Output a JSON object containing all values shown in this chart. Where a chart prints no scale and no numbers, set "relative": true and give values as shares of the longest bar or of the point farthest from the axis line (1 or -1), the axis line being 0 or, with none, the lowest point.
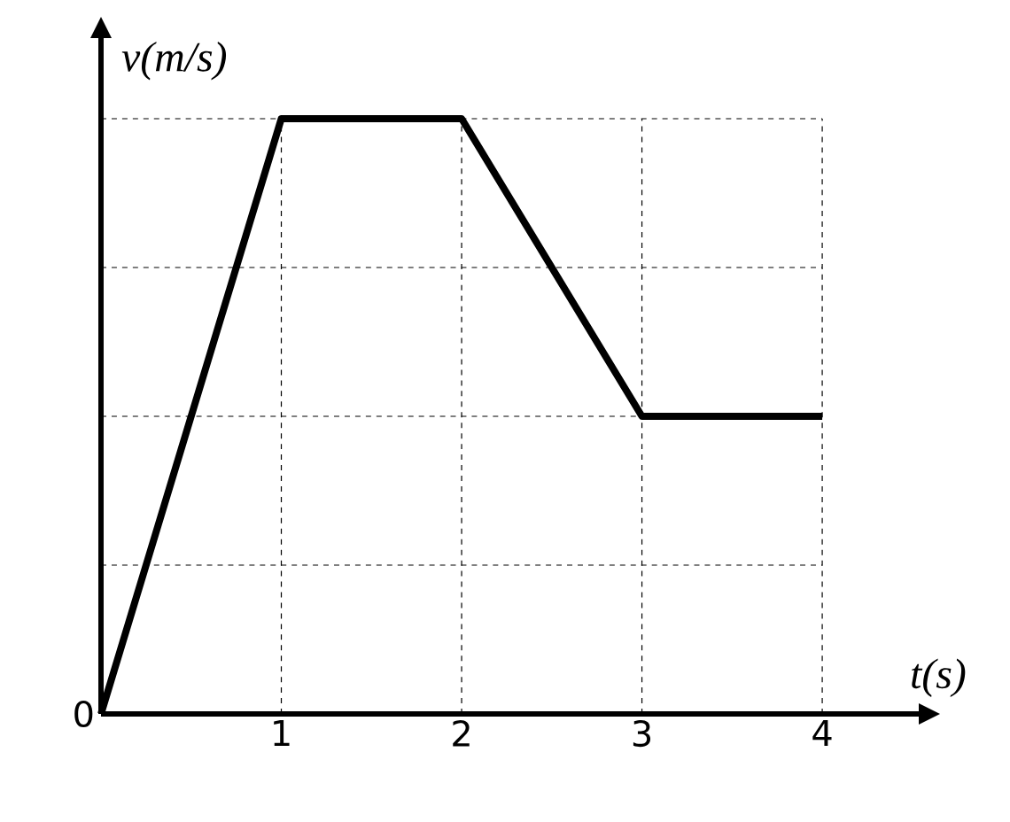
{
  "chart_data": {
    "type": "line",
    "xlabel": "t(s)",
    "ylabel": "v(m/s)",
    "relative": true,
    "x": [
      0,
      1,
      2,
      3,
      4
    ],
    "values": [
      0,
      1,
      1,
      0.5,
      0.5
    ],
    "color": "#000000",
    "xlim": [
      0,
      4.55
    ],
    "xticks": [
      1,
      2,
      3,
      4
    ],
    "grid": true,
    "marker": "none",
    "line_style": "solid",
    "annotations": [
      {
        "text": "0",
        "x": 0,
        "y": 0
      }
    ]
  }
}
